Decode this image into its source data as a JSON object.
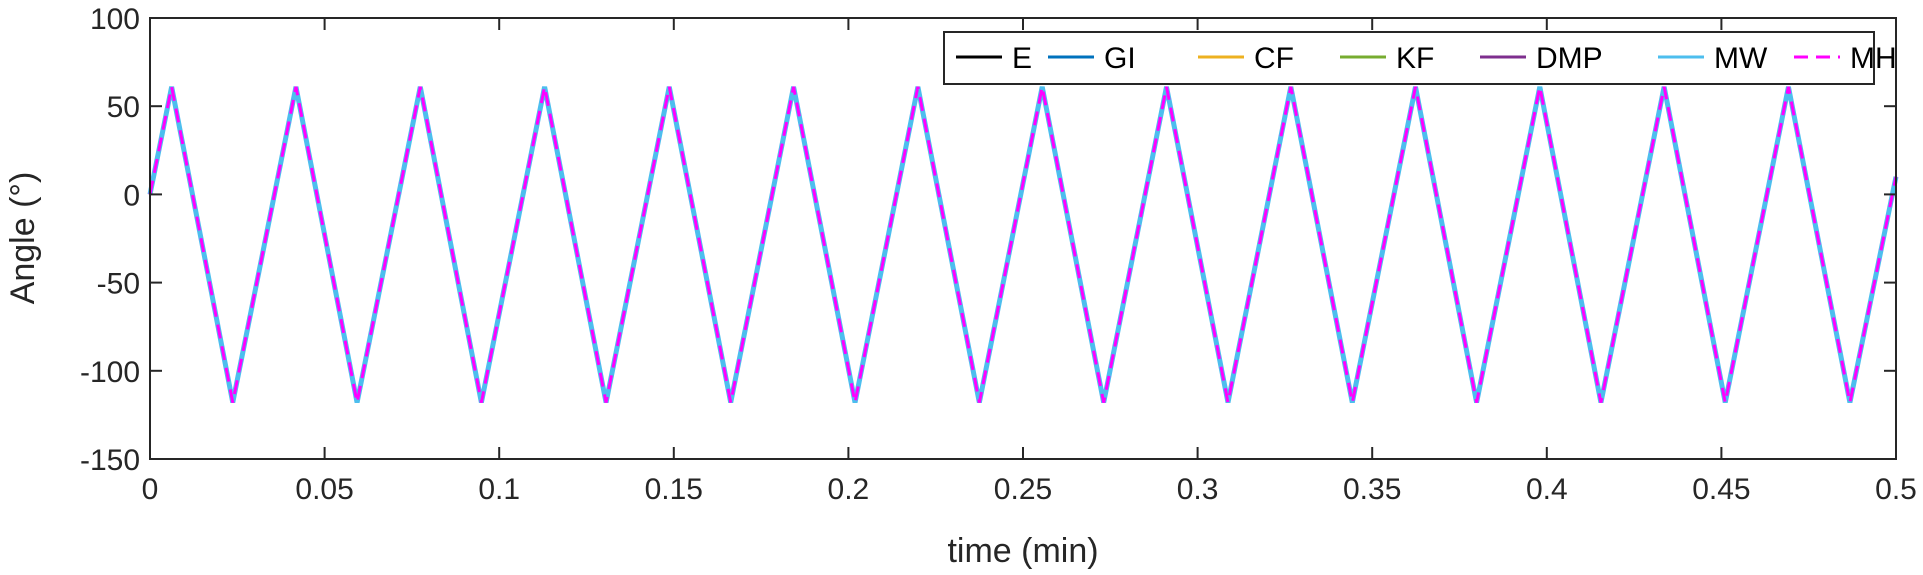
{
  "chart_data": {
    "type": "line",
    "title": "",
    "xlabel": "time (min)",
    "ylabel": "Angle (°)",
    "xlim": [
      0,
      0.5
    ],
    "ylim": [
      -150,
      100
    ],
    "xticks": [
      0,
      0.05,
      0.1,
      0.15,
      0.2,
      0.25,
      0.3,
      0.35,
      0.4,
      0.45,
      0.5
    ],
    "xtick_labels": [
      "0",
      "0.05",
      "0.1",
      "0.15",
      "0.2",
      "0.25",
      "0.3",
      "0.35",
      "0.4",
      "0.45",
      "0.5"
    ],
    "yticks": [
      100,
      50,
      0,
      -50,
      -100,
      -150
    ],
    "ytick_labels": [
      "100",
      "50",
      "0",
      "-50",
      "-100",
      "-150"
    ],
    "grid": false,
    "legend_position": "top-right",
    "series": [
      {
        "name": "E",
        "color": "#000000",
        "style": "solid"
      },
      {
        "name": "GI",
        "color": "#0072BD",
        "style": "solid"
      },
      {
        "name": "CF",
        "color": "#EDB120",
        "style": "solid"
      },
      {
        "name": "KF",
        "color": "#77AC30",
        "style": "solid"
      },
      {
        "name": "DMP",
        "color": "#7E2F8E",
        "style": "solid"
      },
      {
        "name": "MW",
        "color": "#4DBEEE",
        "style": "solid"
      },
      {
        "name": "MH",
        "color": "#FF00FF",
        "style": "dashed"
      }
    ],
    "shared_waveform": {
      "x": [
        0,
        0.0062,
        0.0237,
        0.0418,
        0.0593,
        0.0774,
        0.0949,
        0.113,
        0.1306,
        0.1487,
        0.1663,
        0.1843,
        0.2019,
        0.2199,
        0.2375,
        0.2555,
        0.2731,
        0.2911,
        0.3087,
        0.3267,
        0.3443,
        0.3624,
        0.3799,
        0.398,
        0.4155,
        0.4336,
        0.4511,
        0.4692,
        0.4868,
        0.5
      ],
      "y": [
        0,
        61,
        -118,
        61,
        -118,
        61,
        -118,
        61,
        -118,
        61,
        -118,
        61,
        -118,
        61,
        -118,
        61,
        -118,
        61,
        -118,
        61,
        -118,
        61,
        -118,
        61,
        -118,
        61,
        -118,
        61,
        -118,
        10
      ]
    }
  }
}
